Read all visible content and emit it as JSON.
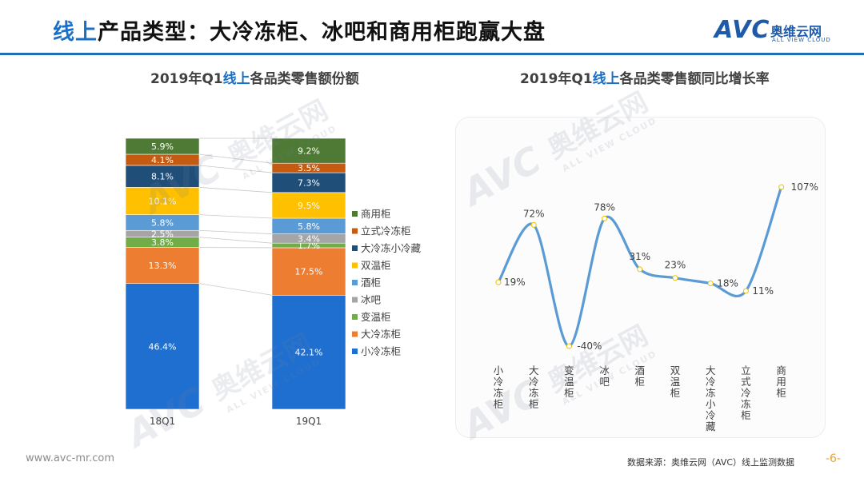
{
  "header": {
    "title_highlight": "线上",
    "title_rest": "产品类型：大冷冻柜、冰吧和商用柜跑赢大盘",
    "logo_mark": "AVC",
    "logo_cn": "奥维云网",
    "logo_en": "ALL VIEW CLOUD"
  },
  "watermark": {
    "mark": "AVC",
    "cn": "奥维云网",
    "en": "ALL VIEW CLOUD"
  },
  "left_chart": {
    "title_prefix": "2019年Q1",
    "title_highlight": "线上",
    "title_suffix": "各品类零售额份额"
  },
  "right_chart": {
    "title_prefix": "2019年Q1",
    "title_highlight": "线上",
    "title_suffix": "各品类零售额同比增长率"
  },
  "chart_data": [
    {
      "type": "bar",
      "stacked": true,
      "normalized": true,
      "title": "2019年Q1线上各品类零售额份额",
      "categories": [
        "18Q1",
        "19Q1"
      ],
      "series": [
        {
          "name": "小冷冻柜",
          "values": [
            46.4,
            42.1
          ],
          "labels": [
            "46.4%",
            "42.1%"
          ],
          "color": "#1f6fd0"
        },
        {
          "name": "大冷冻柜",
          "values": [
            13.3,
            17.5
          ],
          "labels": [
            "13.3%",
            "17.5%"
          ],
          "color": "#ed7d31"
        },
        {
          "name": "变温柜",
          "values": [
            3.8,
            1.7
          ],
          "labels": [
            "3.8%",
            "1.7%"
          ],
          "color": "#70ad47"
        },
        {
          "name": "冰吧",
          "values": [
            2.5,
            3.4
          ],
          "labels": [
            "2.5%",
            "3.4%"
          ],
          "color": "#a5a5a5"
        },
        {
          "name": "酒柜",
          "values": [
            5.8,
            5.8
          ],
          "labels": [
            "5.8%",
            "5.8%"
          ],
          "color": "#5b9bd5"
        },
        {
          "name": "双温柜",
          "values": [
            10.1,
            9.5
          ],
          "labels": [
            "10.1%",
            "9.5%"
          ],
          "color": "#ffc000"
        },
        {
          "name": "大冷冻小冷藏",
          "values": [
            8.1,
            7.3
          ],
          "labels": [
            "8.1%",
            "7.3%"
          ],
          "color": "#1f4e79"
        },
        {
          "name": "立式冷冻柜",
          "values": [
            4.1,
            3.5
          ],
          "labels": [
            "4.1%",
            "3.5%"
          ],
          "color": "#c55a11"
        },
        {
          "name": "商用柜",
          "values": [
            5.9,
            9.2
          ],
          "labels": [
            "5.9%",
            "9.2%"
          ],
          "color": "#4e7a35"
        }
      ],
      "legend_position": "right",
      "legend_order": [
        "商用柜",
        "立式冷冻柜",
        "大冷冻小冷藏",
        "双温柜",
        "酒柜",
        "冰吧",
        "变温柜",
        "大冷冻柜",
        "小冷冻柜"
      ]
    },
    {
      "type": "line",
      "smooth": true,
      "title": "2019年Q1线上各品类零售额同比增长率",
      "categories": [
        "小冷冻柜",
        "大冷冻柜",
        "变温柜",
        "冰吧",
        "酒柜",
        "双温柜",
        "大冷冻小冷藏",
        "立式冷冻柜",
        "商用柜"
      ],
      "series": [
        {
          "values": [
            19,
            72,
            -40,
            78,
            31,
            23,
            18,
            11,
            107
          ],
          "labels": [
            "19%",
            "72%",
            "-40%",
            "78%",
            "31%",
            "23%",
            "18%",
            "11%",
            "107%"
          ],
          "color": "#5b9bd5"
        }
      ],
      "ylim": [
        -40,
        107
      ]
    }
  ],
  "footer": {
    "url": "www.avc-mr.com",
    "source": "数据来源：奥维云网（AVC）线上监测数据",
    "page": "-6-"
  }
}
